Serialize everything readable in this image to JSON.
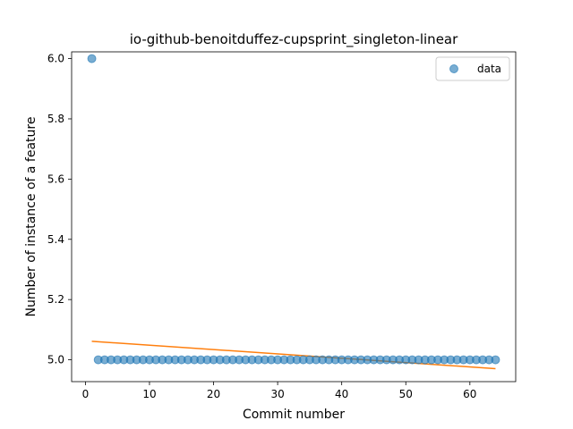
{
  "chart_data": {
    "type": "scatter",
    "title": "io-github-benoitduffez-cupsprint_singleton-linear",
    "xlabel": "Commit number",
    "ylabel": "Number of instance of a feature",
    "xlim": [
      -2.15,
      67.15
    ],
    "ylim": [
      4.9275,
      6.0225
    ],
    "xticks": [
      0,
      10,
      20,
      30,
      40,
      50,
      60
    ],
    "yticks": [
      5.0,
      5.2,
      5.4,
      5.6,
      5.8,
      6.0
    ],
    "ytick_labels": [
      "5.0",
      "5.2",
      "5.4",
      "5.6",
      "5.8",
      "6.0"
    ],
    "grid": false,
    "legend_placement": "top-right",
    "series": [
      {
        "name": "data",
        "kind": "scatter",
        "color": "#1f77b4",
        "x": [
          1,
          2,
          3,
          4,
          5,
          6,
          7,
          8,
          9,
          10,
          11,
          12,
          13,
          14,
          15,
          16,
          17,
          18,
          19,
          20,
          21,
          22,
          23,
          24,
          25,
          26,
          27,
          28,
          29,
          30,
          31,
          32,
          33,
          34,
          35,
          36,
          37,
          38,
          39,
          40,
          41,
          42,
          43,
          44,
          45,
          46,
          47,
          48,
          49,
          50,
          51,
          52,
          53,
          54,
          55,
          56,
          57,
          58,
          59,
          60,
          61,
          62,
          63,
          64
        ],
        "y": [
          6,
          5,
          5,
          5,
          5,
          5,
          5,
          5,
          5,
          5,
          5,
          5,
          5,
          5,
          5,
          5,
          5,
          5,
          5,
          5,
          5,
          5,
          5,
          5,
          5,
          5,
          5,
          5,
          5,
          5,
          5,
          5,
          5,
          5,
          5,
          5,
          5,
          5,
          5,
          5,
          5,
          5,
          5,
          5,
          5,
          5,
          5,
          5,
          5,
          5,
          5,
          5,
          5,
          5,
          5,
          5,
          5,
          5,
          5,
          5,
          5,
          5,
          5,
          5
        ]
      },
      {
        "kind": "line",
        "color": "#ff7f0e",
        "x": [
          1,
          64
        ],
        "y": [
          5.0615,
          4.9705
        ]
      }
    ]
  }
}
